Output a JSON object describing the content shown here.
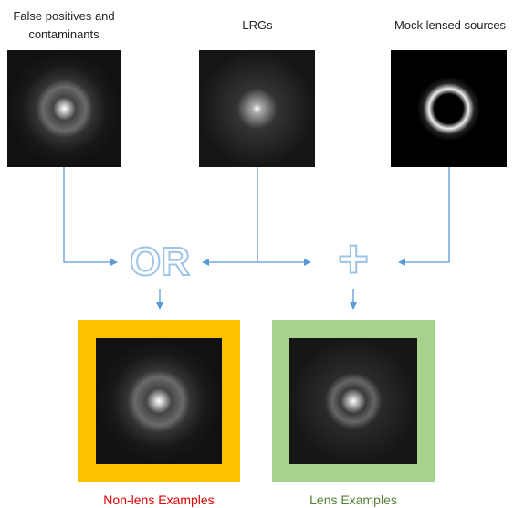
{
  "sources": [
    {
      "label_lines": [
        "False positives and",
        "contaminants"
      ]
    },
    {
      "label_lines": [
        "LRGs"
      ]
    },
    {
      "label_lines": [
        "Mock lensed sources"
      ]
    }
  ],
  "operators": [
    "OR",
    "+"
  ],
  "outputs": [
    {
      "label": "Non-lens Examples"
    },
    {
      "label": "Lens Examples"
    }
  ]
}
